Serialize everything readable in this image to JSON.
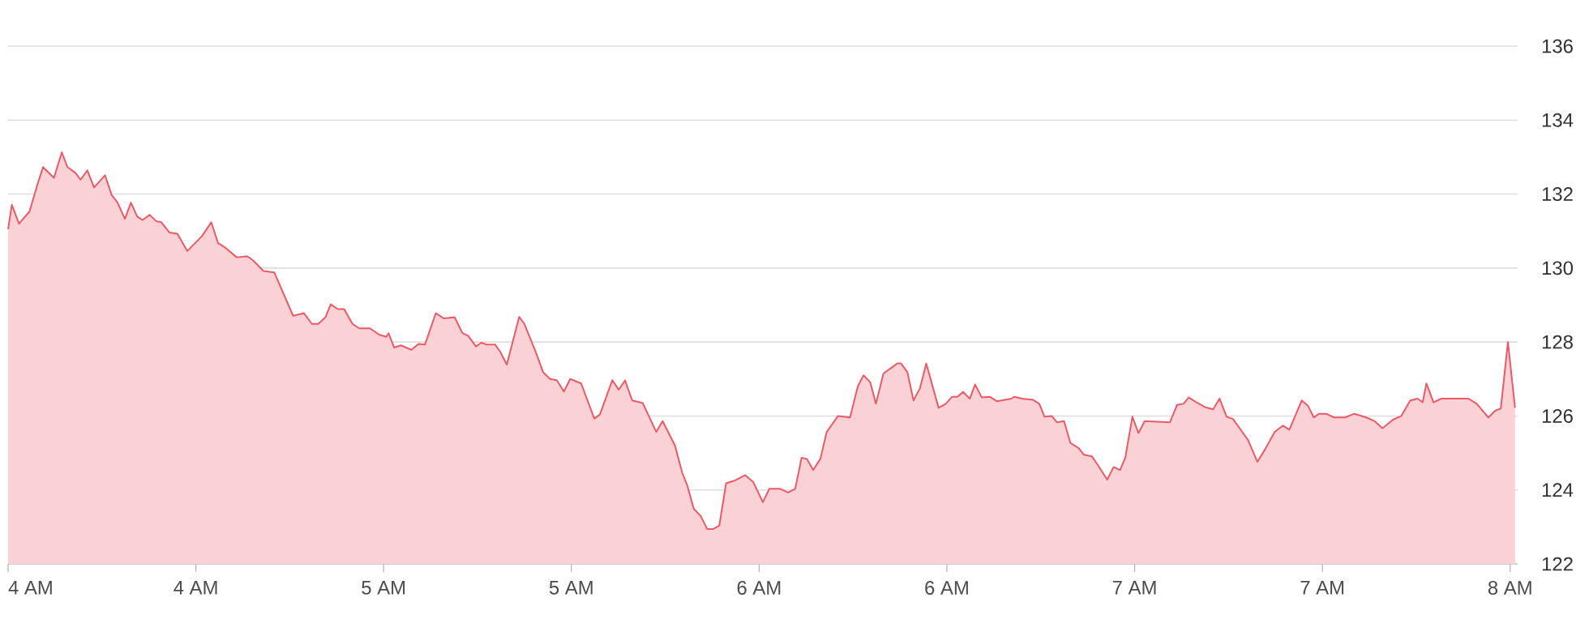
{
  "chart_data": {
    "type": "area",
    "x": [
      4.0,
      4.01,
      4.029,
      4.057,
      4.079,
      4.093,
      4.122,
      4.143,
      4.158,
      4.179,
      4.193,
      4.211,
      4.229,
      4.258,
      4.276,
      4.291,
      4.311,
      4.327,
      4.344,
      4.358,
      4.377,
      4.394,
      4.408,
      4.43,
      4.451,
      4.477,
      4.516,
      4.541,
      4.559,
      4.58,
      4.609,
      4.637,
      4.652,
      4.68,
      4.709,
      4.759,
      4.788,
      4.809,
      4.826,
      4.845,
      4.859,
      4.878,
      4.895,
      4.917,
      4.935,
      4.964,
      4.988,
      5.007,
      5.013,
      5.028,
      5.046,
      5.074,
      5.093,
      5.11,
      5.139,
      5.16,
      5.189,
      5.21,
      5.225,
      5.246,
      5.26,
      5.275,
      5.297,
      5.311,
      5.328,
      5.361,
      5.375,
      5.404,
      5.425,
      5.443,
      5.461,
      5.48,
      5.497,
      5.526,
      5.561,
      5.576,
      5.609,
      5.626,
      5.643,
      5.662,
      5.69,
      5.726,
      5.743,
      5.776,
      5.795,
      5.809,
      5.826,
      5.844,
      5.862,
      5.877,
      5.894,
      5.912,
      5.934,
      5.963,
      5.984,
      6.01,
      6.027,
      6.056,
      6.077,
      6.096,
      6.113,
      6.127,
      6.144,
      6.163,
      6.18,
      6.21,
      6.242,
      6.263,
      6.278,
      6.296,
      6.311,
      6.331,
      6.368,
      6.378,
      6.395,
      6.411,
      6.428,
      6.445,
      6.478,
      6.497,
      6.514,
      6.528,
      6.543,
      6.561,
      6.575,
      6.593,
      6.614,
      6.633,
      6.672,
      6.679,
      6.7,
      6.729,
      6.746,
      6.76,
      6.779,
      6.793,
      6.812,
      6.829,
      6.851,
      6.865,
      6.886,
      6.901,
      6.927,
      6.944,
      6.961,
      6.975,
      6.994,
      7.01,
      7.027,
      7.094,
      7.113,
      7.13,
      7.144,
      7.166,
      7.187,
      7.209,
      7.226,
      7.245,
      7.262,
      7.302,
      7.327,
      7.349,
      7.373,
      7.395,
      7.412,
      7.445,
      7.462,
      7.477,
      7.491,
      7.51,
      7.531,
      7.56,
      7.585,
      7.617,
      7.639,
      7.66,
      7.688,
      7.71,
      7.734,
      7.753,
      7.767,
      7.777,
      7.796,
      7.817,
      7.853,
      7.889,
      7.911,
      7.942,
      7.961,
      7.975,
      7.994,
      8.013
    ],
    "series": [
      {
        "color": "#ec5a66",
        "values": [
          131.05,
          131.71,
          131.2,
          131.53,
          132.29,
          132.73,
          132.44,
          133.13,
          132.73,
          132.58,
          132.39,
          132.64,
          132.18,
          132.51,
          131.97,
          131.78,
          131.33,
          131.77,
          131.39,
          131.3,
          131.44,
          131.27,
          131.24,
          130.96,
          130.93,
          130.46,
          130.86,
          131.24,
          130.68,
          130.54,
          130.29,
          130.32,
          130.21,
          129.92,
          129.88,
          128.71,
          128.78,
          128.49,
          128.49,
          128.67,
          129.02,
          128.89,
          128.89,
          128.49,
          128.37,
          128.37,
          128.2,
          128.14,
          128.24,
          127.85,
          127.91,
          127.79,
          127.95,
          127.93,
          128.78,
          128.64,
          128.67,
          128.24,
          128.17,
          127.88,
          127.98,
          127.93,
          127.93,
          127.73,
          127.39,
          128.68,
          128.49,
          127.76,
          127.18,
          127.0,
          126.97,
          126.66,
          127.0,
          126.88,
          125.93,
          126.04,
          126.97,
          126.71,
          126.96,
          126.42,
          126.35,
          125.57,
          125.86,
          125.2,
          124.47,
          124.11,
          123.49,
          123.3,
          122.94,
          122.94,
          123.04,
          124.18,
          124.25,
          124.4,
          124.22,
          123.67,
          124.03,
          124.03,
          123.93,
          124.03,
          124.87,
          124.84,
          124.54,
          124.84,
          125.57,
          126.0,
          125.96,
          126.81,
          127.1,
          126.91,
          126.33,
          127.15,
          127.42,
          127.42,
          127.18,
          126.42,
          126.74,
          127.42,
          126.22,
          126.33,
          126.52,
          126.52,
          126.65,
          126.47,
          126.85,
          126.5,
          126.52,
          126.4,
          126.47,
          126.52,
          126.47,
          126.44,
          126.33,
          125.98,
          126.0,
          125.83,
          125.86,
          125.27,
          125.13,
          124.95,
          124.91,
          124.69,
          124.28,
          124.62,
          124.54,
          124.87,
          125.98,
          125.54,
          125.86,
          125.83,
          126.3,
          126.33,
          126.5,
          126.36,
          126.24,
          126.18,
          126.47,
          125.98,
          125.92,
          125.35,
          124.76,
          125.13,
          125.57,
          125.74,
          125.63,
          126.42,
          126.27,
          125.96,
          126.06,
          126.06,
          125.96,
          125.96,
          126.06,
          125.96,
          125.86,
          125.67,
          125.9,
          126.0,
          126.42,
          126.47,
          126.37,
          126.88,
          126.37,
          126.47,
          126.47,
          126.47,
          126.33,
          125.96,
          126.15,
          126.2,
          128.0,
          126.22
        ]
      }
    ],
    "xlim": [
      4.0,
      8.02
    ],
    "ylim": [
      122,
      136
    ],
    "xticks": [
      {
        "value": 4.0,
        "label": "4 AM"
      },
      {
        "value": 4.5,
        "label": "4 AM"
      },
      {
        "value": 5.0,
        "label": "5 AM"
      },
      {
        "value": 5.5,
        "label": "5 AM"
      },
      {
        "value": 6.0,
        "label": "6 AM"
      },
      {
        "value": 6.5,
        "label": "6 AM"
      },
      {
        "value": 7.0,
        "label": "7 AM"
      },
      {
        "value": 7.5,
        "label": "7 AM"
      },
      {
        "value": 8.0,
        "label": "8 AM"
      }
    ],
    "yticks": [
      122,
      124,
      126,
      128,
      130,
      132,
      134,
      136
    ],
    "grid": "y",
    "legend": false,
    "marker": "none",
    "line_style": "solid"
  }
}
